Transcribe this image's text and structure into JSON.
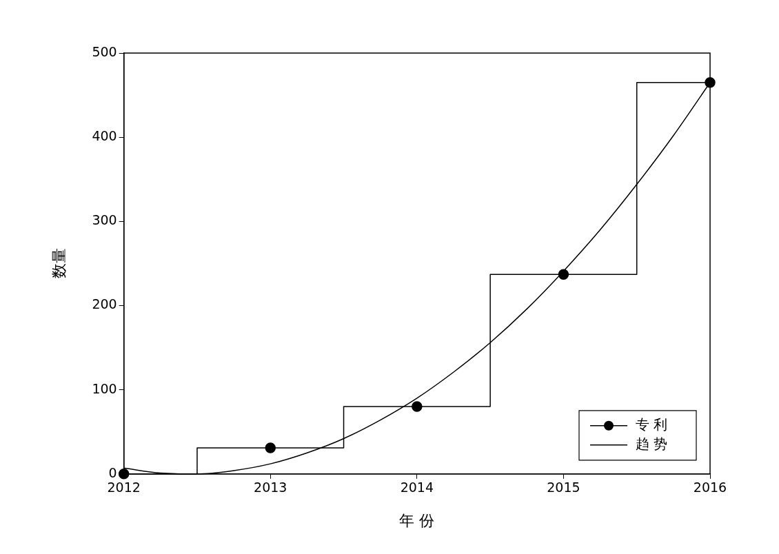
{
  "chart_data": {
    "type": "step",
    "xlabel": "年 份",
    "ylabel": "数量",
    "xlim": [
      2012,
      2016
    ],
    "xticks": [
      2012,
      2013,
      2014,
      2015,
      2016
    ],
    "ylim": [
      0,
      500
    ],
    "yticks": [
      0,
      100,
      200,
      300,
      400,
      500
    ],
    "grid": false,
    "legend": "bottom right",
    "series": [
      {
        "name": "专 利",
        "type": "step",
        "color": "#000000",
        "marker": "circle",
        "x": [
          2012,
          2013,
          2014,
          2015,
          2016
        ],
        "values": [
          0,
          31,
          80,
          237,
          465
        ]
      },
      {
        "name": "趋 势",
        "type": "line",
        "color": "#000000",
        "marker": "none",
        "x": [
          2012,
          2012.25,
          2012.5,
          2012.75,
          2013,
          2013.25,
          2013.5,
          2013.75,
          2014,
          2014.25,
          2014.5,
          2014.75,
          2015,
          2015.25,
          2015.5,
          2015.75,
          2016
        ],
        "values": [
          7,
          1,
          0,
          4,
          12,
          25,
          42,
          64,
          90,
          121,
          156,
          196,
          241,
          290,
          344,
          402,
          465
        ]
      }
    ]
  }
}
